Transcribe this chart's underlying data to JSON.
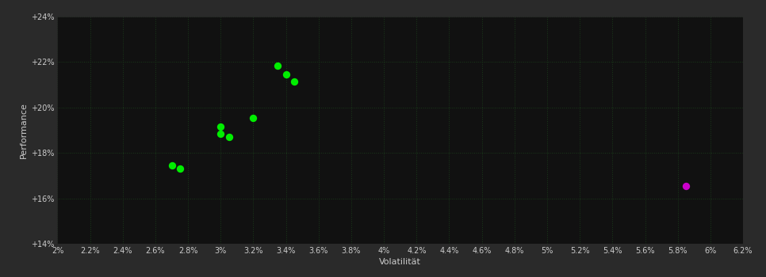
{
  "background_color": "#2a2a2a",
  "plot_bg_color": "#111111",
  "grid_color": "#1a3a1a",
  "xlabel": "Volatilität",
  "ylabel": "Performance",
  "xlabel_color": "#cccccc",
  "ylabel_color": "#cccccc",
  "tick_color": "#cccccc",
  "xlim": [
    0.02,
    0.062
  ],
  "ylim": [
    0.14,
    0.24
  ],
  "xticks": [
    0.02,
    0.022,
    0.024,
    0.026,
    0.028,
    0.03,
    0.032,
    0.034,
    0.036,
    0.038,
    0.04,
    0.042,
    0.044,
    0.046,
    0.048,
    0.05,
    0.052,
    0.054,
    0.056,
    0.058,
    0.06,
    0.062
  ],
  "yticks": [
    0.14,
    0.16,
    0.18,
    0.2,
    0.22,
    0.24
  ],
  "green_points": [
    [
      0.027,
      0.1745
    ],
    [
      0.0275,
      0.173
    ],
    [
      0.03,
      0.1915
    ],
    [
      0.03,
      0.1885
    ],
    [
      0.0305,
      0.187
    ],
    [
      0.032,
      0.1955
    ],
    [
      0.0335,
      0.2185
    ],
    [
      0.034,
      0.2145
    ],
    [
      0.0345,
      0.2115
    ]
  ],
  "magenta_points": [
    [
      0.0585,
      0.1655
    ]
  ],
  "green_color": "#00ee00",
  "magenta_color": "#cc00cc",
  "marker_size": 5.5
}
